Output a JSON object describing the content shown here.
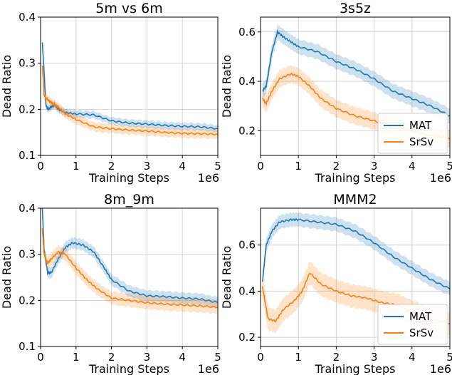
{
  "colors": {
    "MAT": "#1f77b4",
    "SrSv": "#ff7f0e"
  },
  "chart_data": [
    {
      "type": "line",
      "title": "5m vs 6m",
      "xlabel": "Training Steps",
      "ylabel": "Dead Ratio",
      "x_multiplier_label": "1e6",
      "xlim": [
        0,
        5
      ],
      "ylim": [
        0.1,
        0.4
      ],
      "xticks": [
        0,
        1,
        2,
        3,
        4,
        5
      ],
      "yticks": [
        0.1,
        0.2,
        0.3,
        0.4
      ],
      "ytick_labels": [
        "0.1",
        "0.2",
        "0.3",
        "0.4"
      ],
      "grid": true,
      "legend": "none",
      "series": [
        {
          "name": "MAT",
          "x": [
            0.05,
            0.1,
            0.15,
            0.2,
            0.3,
            0.4,
            0.5,
            0.7,
            1.0,
            1.5,
            2.0,
            2.5,
            3.0,
            3.5,
            4.0,
            4.5,
            5.0
          ],
          "y": [
            0.345,
            0.28,
            0.21,
            0.2,
            0.205,
            0.21,
            0.2,
            0.193,
            0.19,
            0.188,
            0.175,
            0.17,
            0.168,
            0.165,
            0.163,
            0.162,
            0.158
          ],
          "band": 0.008
        },
        {
          "name": "SrSv",
          "x": [
            0.05,
            0.1,
            0.15,
            0.2,
            0.3,
            0.4,
            0.5,
            0.7,
            1.0,
            1.5,
            2.0,
            2.5,
            3.0,
            3.5,
            4.0,
            4.5,
            5.0
          ],
          "y": [
            0.295,
            0.23,
            0.225,
            0.22,
            0.215,
            0.21,
            0.205,
            0.19,
            0.178,
            0.162,
            0.158,
            0.155,
            0.153,
            0.15,
            0.148,
            0.147,
            0.146
          ],
          "band": 0.01
        }
      ]
    },
    {
      "type": "line",
      "title": "3s5z",
      "xlabel": "Training Steps",
      "ylabel": "Dead Ratio",
      "x_multiplier_label": "1e6",
      "xlim": [
        0,
        5
      ],
      "ylim": [
        0.1,
        0.66
      ],
      "xticks": [
        0,
        1,
        2,
        3,
        4,
        5
      ],
      "yticks": [
        0.2,
        0.4,
        0.6
      ],
      "ytick_labels": [
        "0.2",
        "0.4",
        "0.6"
      ],
      "grid": true,
      "legend": "lower-right",
      "series": [
        {
          "name": "MAT",
          "x": [
            0.05,
            0.15,
            0.3,
            0.45,
            0.6,
            0.8,
            1.0,
            1.5,
            2.0,
            2.5,
            3.0,
            3.5,
            4.0,
            4.5,
            5.0
          ],
          "y": [
            0.36,
            0.38,
            0.52,
            0.6,
            0.58,
            0.56,
            0.54,
            0.52,
            0.48,
            0.45,
            0.41,
            0.36,
            0.33,
            0.3,
            0.26
          ],
          "band": 0.03
        },
        {
          "name": "SrSv",
          "x": [
            0.05,
            0.15,
            0.3,
            0.5,
            0.8,
            1.0,
            1.3,
            1.6,
            2.0,
            2.5,
            3.0,
            3.5,
            4.0,
            4.5,
            5.0
          ],
          "y": [
            0.33,
            0.31,
            0.36,
            0.41,
            0.43,
            0.42,
            0.38,
            0.33,
            0.29,
            0.26,
            0.24,
            0.21,
            0.2,
            0.18,
            0.17
          ],
          "band": 0.035
        }
      ]
    },
    {
      "type": "line",
      "title": "8m_9m",
      "xlabel": "Training Steps",
      "ylabel": "Dead Ratio",
      "x_multiplier_label": "1e6",
      "xlim": [
        0,
        5
      ],
      "ylim": [
        0.1,
        0.4
      ],
      "xticks": [
        0,
        1,
        2,
        3,
        4,
        5
      ],
      "yticks": [
        0.1,
        0.2,
        0.3,
        0.4
      ],
      "ytick_labels": [
        "0.1",
        "0.2",
        "0.3",
        "0.4"
      ],
      "grid": true,
      "legend": "none",
      "series": [
        {
          "name": "MAT",
          "x": [
            0.05,
            0.1,
            0.2,
            0.3,
            0.5,
            0.7,
            0.9,
            1.2,
            1.5,
            1.8,
            2.0,
            2.5,
            3.0,
            3.5,
            4.0,
            4.5,
            5.0
          ],
          "y": [
            0.4,
            0.31,
            0.26,
            0.26,
            0.29,
            0.315,
            0.325,
            0.32,
            0.305,
            0.27,
            0.245,
            0.22,
            0.21,
            0.208,
            0.205,
            0.203,
            0.195
          ],
          "band": 0.012
        },
        {
          "name": "SrSv",
          "x": [
            0.05,
            0.1,
            0.2,
            0.3,
            0.5,
            0.7,
            1.0,
            1.3,
            1.6,
            2.0,
            2.5,
            3.0,
            3.5,
            4.0,
            4.5,
            5.0
          ],
          "y": [
            0.355,
            0.3,
            0.28,
            0.29,
            0.305,
            0.3,
            0.27,
            0.245,
            0.225,
            0.205,
            0.2,
            0.195,
            0.192,
            0.19,
            0.188,
            0.185
          ],
          "band": 0.014
        }
      ]
    },
    {
      "type": "line",
      "title": "MMM2",
      "xlabel": "Training Steps",
      "ylabel": "Dead Ratio",
      "x_multiplier_label": "1e6",
      "xlim": [
        0,
        5
      ],
      "ylim": [
        0.16,
        0.76
      ],
      "xticks": [
        0,
        1,
        2,
        3,
        4,
        5
      ],
      "yticks": [
        0.2,
        0.4,
        0.6
      ],
      "ytick_labels": [
        "0.2",
        "0.4",
        "0.6"
      ],
      "grid": true,
      "legend": "lower-right",
      "series": [
        {
          "name": "MAT",
          "x": [
            0.05,
            0.15,
            0.3,
            0.5,
            0.8,
            1.0,
            1.5,
            2.0,
            2.5,
            3.0,
            3.5,
            4.0,
            4.5,
            5.0
          ],
          "y": [
            0.44,
            0.6,
            0.66,
            0.7,
            0.71,
            0.71,
            0.7,
            0.69,
            0.66,
            0.61,
            0.55,
            0.5,
            0.45,
            0.41
          ],
          "band": 0.03
        },
        {
          "name": "SrSv",
          "x": [
            0.05,
            0.2,
            0.4,
            0.6,
            0.9,
            1.1,
            1.3,
            1.6,
            2.0,
            2.4,
            2.8,
            3.2,
            3.6,
            4.0,
            4.5,
            5.0
          ],
          "y": [
            0.42,
            0.28,
            0.27,
            0.32,
            0.36,
            0.4,
            0.48,
            0.43,
            0.4,
            0.38,
            0.37,
            0.35,
            0.34,
            0.31,
            0.28,
            0.26
          ],
          "band": 0.05
        }
      ]
    }
  ]
}
